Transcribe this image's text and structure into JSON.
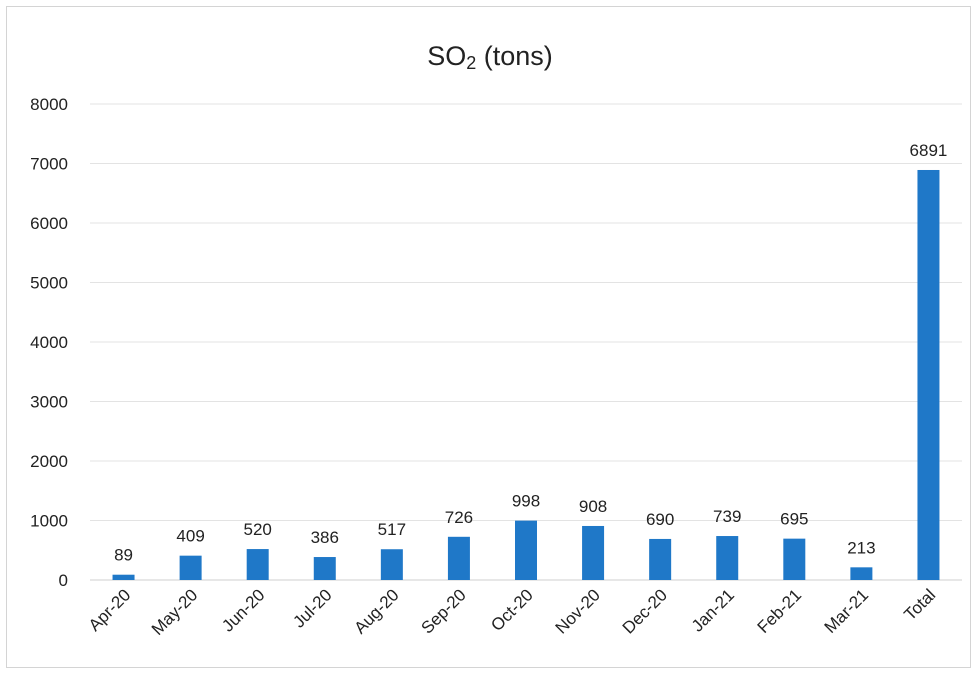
{
  "chart_data": {
    "type": "bar",
    "title_main": "SO",
    "title_sub": "2",
    "title_rest": " (tons)",
    "categories": [
      "Apr-20",
      "May-20",
      "Jun-20",
      "Jul-20",
      "Aug-20",
      "Sep-20",
      "Oct-20",
      "Nov-20",
      "Dec-20",
      "Jan-21",
      "Feb-21",
      "Mar-21",
      "Total"
    ],
    "values": [
      89,
      409,
      520,
      386,
      517,
      726,
      998,
      908,
      690,
      739,
      695,
      213,
      6891
    ],
    "data_labels": [
      "89",
      "409",
      "520",
      "386",
      "517",
      "726",
      "998",
      "908",
      "690",
      "739",
      "695",
      "213",
      "6891"
    ],
    "ylim": [
      0,
      8000
    ],
    "y_ticks": [
      "0",
      "1000",
      "2000",
      "3000",
      "4000",
      "5000",
      "6000",
      "7000",
      "8000"
    ],
    "grid": true,
    "legend": "none",
    "bar_color": "#1f78c8"
  }
}
